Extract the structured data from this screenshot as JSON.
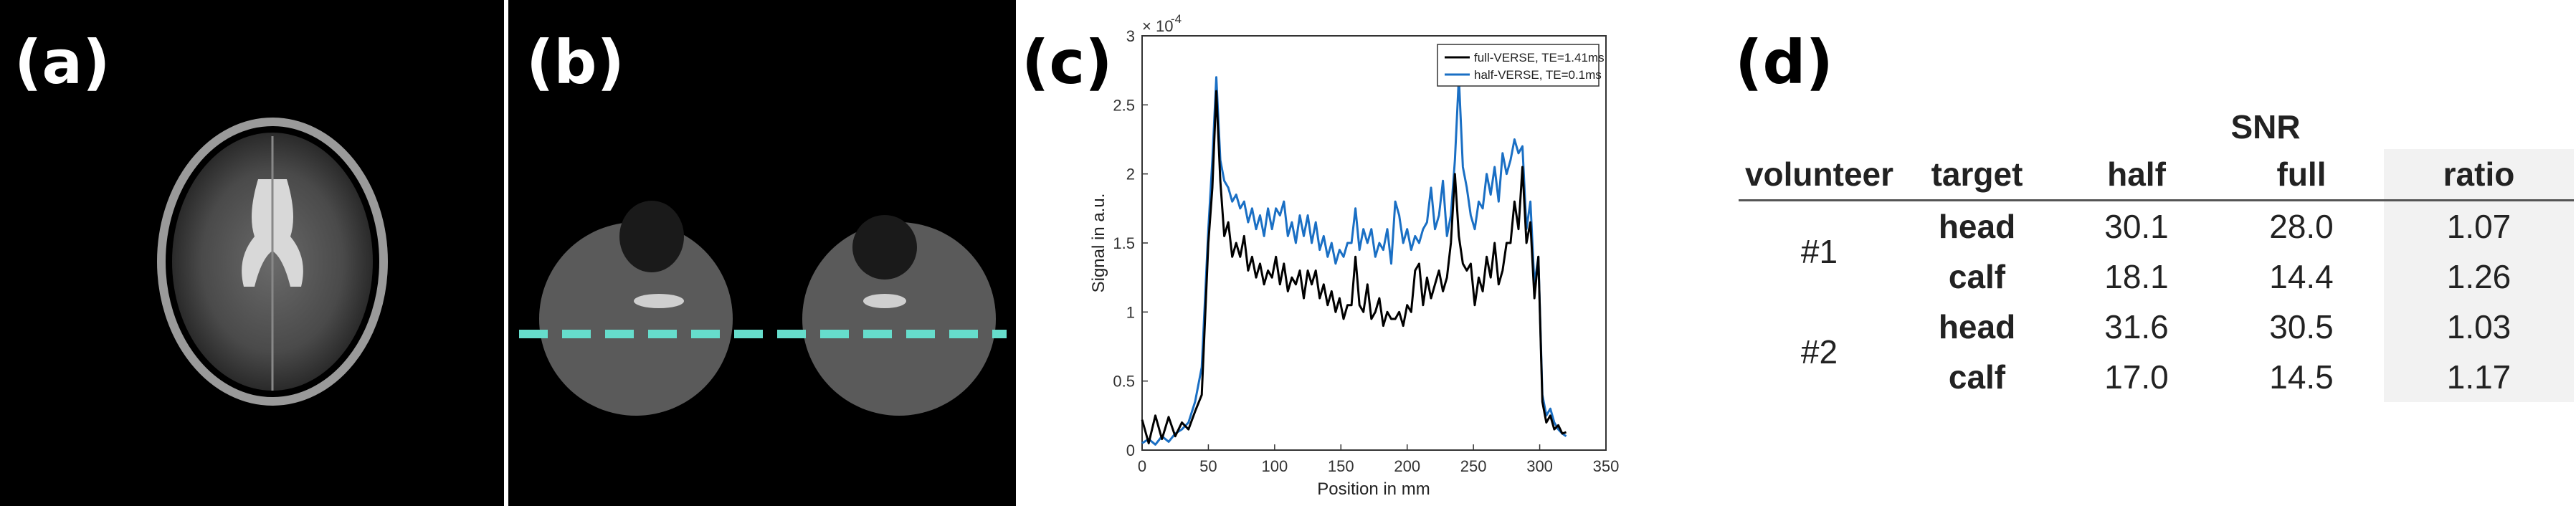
{
  "panels": {
    "a": {
      "label": "(a)"
    },
    "b": {
      "label": "(b)"
    },
    "c": {
      "label": "(c)"
    },
    "d": {
      "label": "(d)"
    }
  },
  "colors": {
    "dashed_line": "#66ddcc",
    "series_full": "#000000",
    "series_half": "#1a6fc4",
    "ratio_bg": "#f2f2f2"
  },
  "chart_data": {
    "type": "line",
    "title": "",
    "xlabel": "Position in mm",
    "ylabel": "Signal in a.u.",
    "xlim": [
      0,
      350
    ],
    "ylim": [
      0,
      3
    ],
    "y_exponent_label": "× 10",
    "y_exponent_power": "-4",
    "xticks": [
      "0",
      "50",
      "100",
      "150",
      "200",
      "250",
      "300",
      "350"
    ],
    "yticks": [
      "0",
      "0.5",
      "1",
      "1.5",
      "2",
      "2.5",
      "3"
    ],
    "legend_position": "top-right",
    "series": [
      {
        "name": "full-VERSE, TE=1.41ms",
        "x": [
          0,
          5,
          10,
          15,
          20,
          25,
          30,
          35,
          40,
          45,
          50,
          53,
          56,
          59,
          62,
          65,
          68,
          71,
          74,
          77,
          80,
          83,
          86,
          89,
          92,
          95,
          98,
          101,
          104,
          107,
          110,
          113,
          116,
          119,
          122,
          125,
          128,
          131,
          134,
          137,
          140,
          143,
          146,
          149,
          152,
          155,
          158,
          161,
          164,
          167,
          170,
          173,
          176,
          179,
          182,
          185,
          188,
          191,
          194,
          197,
          200,
          203,
          206,
          209,
          212,
          215,
          218,
          221,
          224,
          227,
          230,
          233,
          236,
          239,
          242,
          245,
          248,
          251,
          254,
          257,
          260,
          263,
          266,
          269,
          272,
          275,
          278,
          281,
          284,
          287,
          290,
          293,
          296,
          299,
          302,
          305,
          308,
          311,
          314,
          317,
          320
        ],
        "values": [
          0.22,
          0.05,
          0.25,
          0.08,
          0.24,
          0.1,
          0.2,
          0.15,
          0.28,
          0.4,
          1.5,
          1.9,
          2.6,
          1.95,
          1.55,
          1.65,
          1.4,
          1.5,
          1.4,
          1.55,
          1.3,
          1.4,
          1.25,
          1.35,
          1.2,
          1.3,
          1.25,
          1.4,
          1.2,
          1.35,
          1.15,
          1.25,
          1.2,
          1.3,
          1.1,
          1.3,
          1.2,
          1.3,
          1.1,
          1.2,
          1.05,
          1.15,
          1.0,
          1.1,
          0.95,
          1.05,
          1.05,
          1.4,
          1.05,
          1.0,
          1.2,
          0.95,
          1.0,
          1.1,
          0.9,
          1.0,
          0.95,
          0.95,
          1.0,
          0.9,
          1.05,
          1.0,
          1.3,
          1.35,
          1.05,
          1.25,
          1.1,
          1.2,
          1.3,
          1.15,
          1.25,
          1.5,
          2.0,
          1.55,
          1.35,
          1.3,
          1.35,
          1.05,
          1.25,
          1.15,
          1.4,
          1.25,
          1.5,
          1.2,
          1.3,
          1.5,
          1.5,
          1.8,
          1.6,
          2.05,
          1.5,
          1.65,
          1.1,
          1.4,
          0.35,
          0.2,
          0.25,
          0.15,
          0.18,
          0.12,
          0.13
        ]
      },
      {
        "name": "half-VERSE, TE=0.1ms",
        "x": [
          0,
          5,
          10,
          15,
          20,
          25,
          30,
          35,
          40,
          45,
          50,
          53,
          56,
          59,
          62,
          65,
          68,
          71,
          74,
          77,
          80,
          83,
          86,
          89,
          92,
          95,
          98,
          101,
          104,
          107,
          110,
          113,
          116,
          119,
          122,
          125,
          128,
          131,
          134,
          137,
          140,
          143,
          146,
          149,
          152,
          155,
          158,
          161,
          164,
          167,
          170,
          173,
          176,
          179,
          182,
          185,
          188,
          191,
          194,
          197,
          200,
          203,
          206,
          209,
          212,
          215,
          218,
          221,
          224,
          227,
          230,
          233,
          236,
          239,
          242,
          245,
          248,
          251,
          254,
          257,
          260,
          263,
          266,
          269,
          272,
          275,
          278,
          281,
          284,
          287,
          290,
          293,
          296,
          299,
          302,
          305,
          308,
          311,
          314,
          317,
          320
        ],
        "values": [
          0.05,
          0.08,
          0.04,
          0.1,
          0.06,
          0.12,
          0.15,
          0.2,
          0.35,
          0.6,
          1.6,
          2.1,
          2.7,
          2.1,
          1.95,
          1.9,
          1.8,
          1.85,
          1.75,
          1.8,
          1.65,
          1.75,
          1.6,
          1.7,
          1.55,
          1.75,
          1.6,
          1.75,
          1.7,
          1.8,
          1.55,
          1.65,
          1.5,
          1.7,
          1.55,
          1.7,
          1.5,
          1.65,
          1.45,
          1.55,
          1.4,
          1.5,
          1.35,
          1.45,
          1.4,
          1.5,
          1.5,
          1.75,
          1.45,
          1.6,
          1.5,
          1.6,
          1.4,
          1.5,
          1.45,
          1.6,
          1.35,
          1.8,
          1.7,
          1.5,
          1.6,
          1.45,
          1.55,
          1.5,
          1.6,
          1.65,
          1.9,
          1.6,
          1.7,
          1.95,
          1.55,
          1.7,
          2.1,
          2.7,
          2.05,
          1.9,
          1.7,
          1.6,
          1.8,
          1.75,
          2.0,
          1.85,
          2.05,
          1.8,
          2.15,
          2.0,
          2.1,
          2.25,
          2.15,
          2.2,
          1.6,
          1.8,
          1.2,
          1.4,
          0.4,
          0.25,
          0.3,
          0.2,
          0.15,
          0.12,
          0.1
        ]
      }
    ]
  },
  "table": {
    "group_header": "SNR",
    "headers": [
      "volunteer",
      "target",
      "half",
      "full",
      "ratio"
    ],
    "rows": [
      {
        "volunteer": "#1",
        "target": "head",
        "half": "30.1",
        "full": "28.0",
        "ratio": "1.07"
      },
      {
        "volunteer": "",
        "target": "calf",
        "half": "18.1",
        "full": "14.4",
        "ratio": "1.26"
      },
      {
        "volunteer": "#2",
        "target": "head",
        "half": "31.6",
        "full": "30.5",
        "ratio": "1.03"
      },
      {
        "volunteer": "",
        "target": "calf",
        "half": "17.0",
        "full": "14.5",
        "ratio": "1.17"
      }
    ]
  }
}
